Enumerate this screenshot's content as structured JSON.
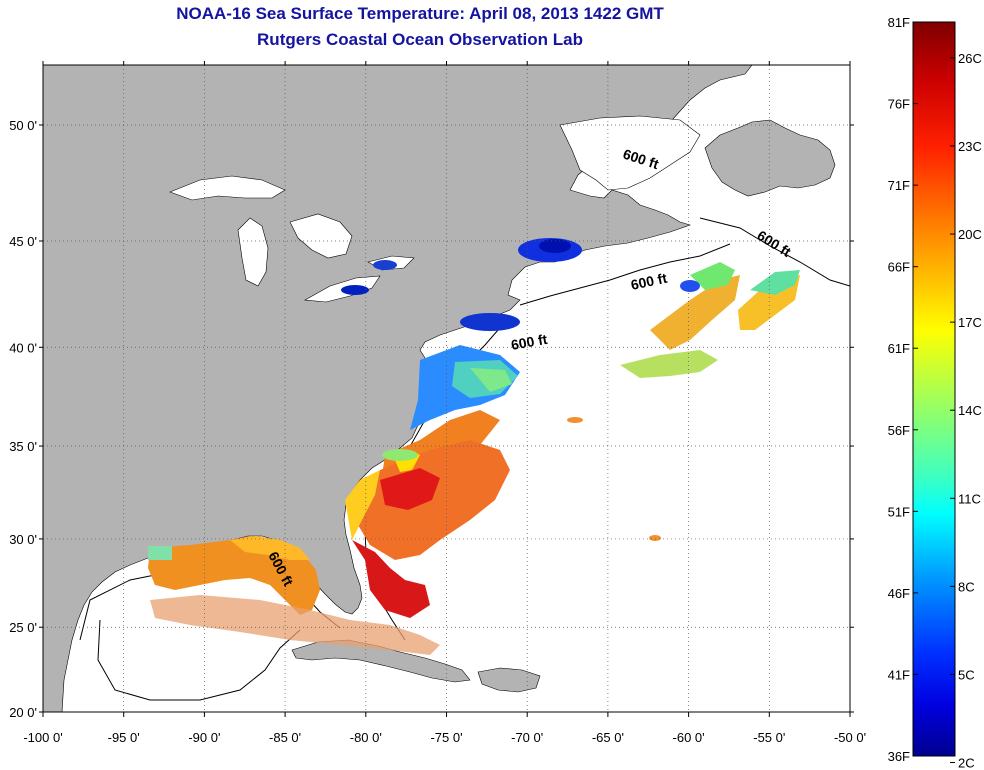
{
  "title_line1": "NOAA-16 Sea Surface Temperature:  April 08, 2013 1422 GMT",
  "title_line2": "Rutgers Coastal Ocean Observation Lab",
  "x_ticks": [
    "-100 0'",
    "-95 0'",
    "-90 0'",
    "-85 0'",
    "-80 0'",
    "-75 0'",
    "-70 0'",
    "-65 0'",
    "-60 0'",
    "-55 0'",
    "-50 0'"
  ],
  "x_tick_values": [
    -100,
    -95,
    -90,
    -85,
    -80,
    -75,
    -70,
    -65,
    -60,
    -55,
    -50
  ],
  "y_ticks": [
    "20 0'",
    "25 0'",
    "30 0'",
    "35 0'",
    "40 0'",
    "45 0'",
    "50 0'"
  ],
  "y_tick_values": [
    20,
    25,
    30,
    35,
    40,
    45,
    50
  ],
  "depth_label": "600 ft",
  "colorbar": {
    "fahrenheit_labels": [
      "81F",
      "76F",
      "71F",
      "66F",
      "61F",
      "56F",
      "51F",
      "46F",
      "41F",
      "36F"
    ],
    "celsius_labels": [
      "26C",
      "23C",
      "20C",
      "17C",
      "14C",
      "11C",
      "8C",
      "5C",
      "2C"
    ],
    "colors": [
      "#7f0000",
      "#cc0000",
      "#ff3300",
      "#ff8800",
      "#ffcc00",
      "#ffff00",
      "#aaff55",
      "#55ffaa",
      "#00ffff",
      "#00aaff",
      "#0055ff",
      "#0000ff",
      "#00008f"
    ]
  },
  "colors": {
    "land": "#b3b3b3",
    "ocean": "#ffffff",
    "title": "#1414a0"
  }
}
